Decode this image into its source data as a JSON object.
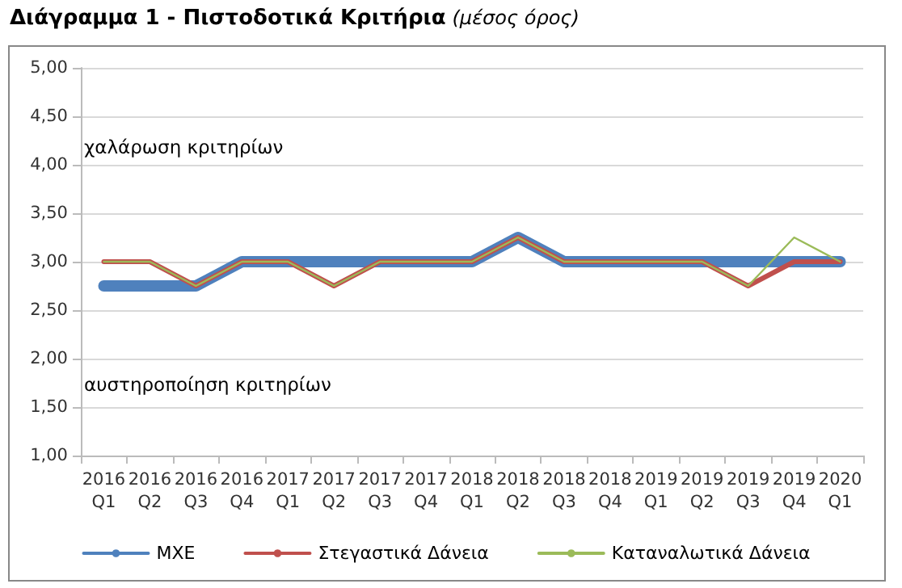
{
  "chart_data": {
    "type": "line",
    "title": "Διάγραμμα 1 - Πιστοδοτικά Κριτήρια",
    "subtitle": "(μέσος όρος)",
    "categories": [
      "2016 Q1",
      "2016 Q2",
      "2016 Q3",
      "2016 Q4",
      "2017 Q1",
      "2017 Q2",
      "2017 Q3",
      "2017 Q4",
      "2018 Q1",
      "2018 Q2",
      "2018 Q3",
      "2018 Q4",
      "2019 Q1",
      "2019 Q2",
      "2019 Q3",
      "2019 Q4",
      "2020 Q1"
    ],
    "series": [
      {
        "name": "ΜΧΕ",
        "color": "#4f81bd",
        "values": [
          2.75,
          2.75,
          2.75,
          3,
          3,
          3,
          3,
          3,
          3,
          3.25,
          3,
          3,
          3,
          3,
          3,
          3,
          3
        ]
      },
      {
        "name": "Στεγαστικά Δάνεια",
        "color": "#c0504d",
        "values": [
          3,
          3,
          2.75,
          3,
          3,
          2.75,
          3,
          3,
          3,
          3.25,
          3,
          3,
          3,
          3,
          2.75,
          3,
          3
        ]
      },
      {
        "name": "Καταναλωτικά Δάνεια",
        "color": "#9bbb59",
        "values": [
          3,
          3,
          2.75,
          3,
          3,
          2.75,
          3,
          3,
          3,
          3.25,
          3,
          3,
          3,
          3,
          2.75,
          3.25,
          3
        ]
      }
    ],
    "ylim": [
      1,
      5
    ],
    "yticks": [
      {
        "value": 1,
        "label": "1,00"
      },
      {
        "value": 1.5,
        "label": "1,50"
      },
      {
        "value": 2,
        "label": "2,00"
      },
      {
        "value": 2.5,
        "label": "2,50"
      },
      {
        "value": 3,
        "label": "3,00"
      },
      {
        "value": 3.5,
        "label": "3,50"
      },
      {
        "value": 4,
        "label": "4,00"
      },
      {
        "value": 4.5,
        "label": "4,50"
      },
      {
        "value": 5,
        "label": "5,00"
      }
    ],
    "annotations": [
      "χαλάρωση κριτηρίων",
      "αυστηροποίηση κριτηρίων"
    ],
    "grid": "y",
    "legend": "bottom",
    "marker": "none",
    "line_style": "solid"
  }
}
